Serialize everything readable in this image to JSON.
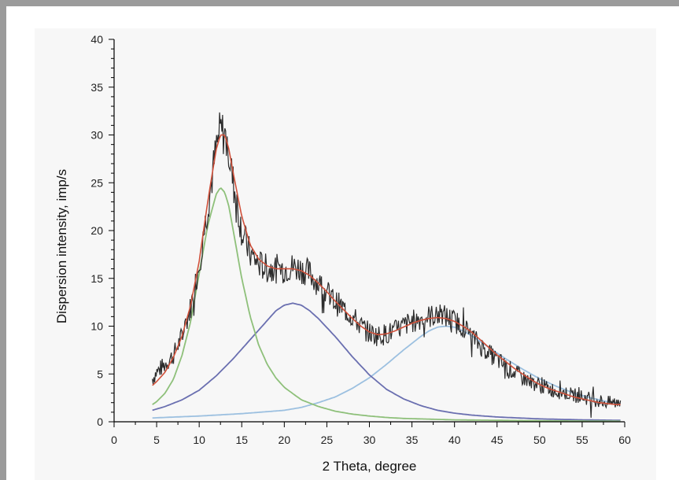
{
  "chart_data": {
    "type": "line",
    "title": "",
    "xlabel": "2 Theta, degree",
    "ylabel": "Dispersion intensity, imp/s",
    "xlim": [
      0,
      60
    ],
    "ylim": [
      0,
      40
    ],
    "x_ticks": [
      0,
      5,
      10,
      15,
      20,
      25,
      30,
      35,
      40,
      45,
      50,
      55,
      60
    ],
    "y_ticks": [
      0,
      5,
      10,
      15,
      20,
      25,
      30,
      35,
      40
    ],
    "x_range_measured": [
      4.5,
      59.5
    ],
    "grid": false,
    "legend": "none",
    "colors": {
      "measured": "#2b2b2b",
      "fit": "#d0503a",
      "peak1": "#8ec07a",
      "peak2": "#6a6fb0",
      "peak3": "#9cc0e0",
      "axis": "#000000"
    },
    "series": [
      {
        "role": "measured",
        "x": [
          4.5,
          5,
          6,
          7,
          8,
          9,
          10,
          11,
          12,
          12.5,
          13,
          13.5,
          14,
          15,
          16,
          17,
          18,
          19,
          20,
          21,
          22,
          23,
          24,
          25,
          26,
          27,
          28,
          29,
          30,
          31,
          32,
          33,
          34,
          35,
          36,
          37,
          38,
          39,
          40,
          41,
          42,
          43,
          44,
          45,
          46,
          47,
          48,
          49,
          50,
          51,
          52,
          53,
          54,
          55,
          56,
          57,
          58,
          59,
          59.5
        ],
        "y": [
          4.5,
          5.2,
          6.0,
          7.0,
          9.0,
          12.0,
          16.5,
          22.5,
          28.5,
          30.5,
          30.0,
          28.0,
          25.0,
          20.0,
          17.5,
          16.5,
          16.0,
          16.0,
          16.0,
          16.2,
          16.0,
          15.5,
          14.5,
          13.5,
          12.5,
          11.8,
          11.0,
          10.0,
          9.3,
          9.0,
          9.2,
          9.5,
          10.0,
          10.5,
          10.8,
          11.0,
          11.2,
          11.0,
          10.5,
          10.0,
          9.0,
          8.0,
          7.2,
          6.5,
          5.8,
          5.2,
          4.6,
          4.2,
          3.8,
          3.5,
          3.2,
          3.0,
          2.8,
          2.6,
          2.4,
          2.2,
          2.0,
          2.0,
          2.2
        ]
      },
      {
        "role": "fit",
        "x": [
          4.5,
          5,
          6,
          7,
          8,
          9,
          10,
          11,
          12,
          12.5,
          13,
          13.5,
          14,
          15,
          16,
          17,
          18,
          19,
          20,
          21,
          22,
          23,
          24,
          25,
          26,
          27,
          28,
          29,
          30,
          31,
          32,
          33,
          34,
          35,
          36,
          37,
          38,
          39,
          40,
          41,
          42,
          43,
          44,
          45,
          46,
          47,
          48,
          49,
          50,
          51,
          52,
          53,
          54,
          55,
          56,
          57,
          58,
          59,
          59.5
        ],
        "y": [
          3.8,
          4.2,
          5.2,
          6.8,
          9.0,
          12.2,
          16.8,
          23.0,
          28.5,
          30.0,
          30.0,
          28.5,
          26.0,
          21.5,
          18.5,
          17.0,
          16.3,
          16.0,
          16.0,
          16.0,
          15.8,
          15.3,
          14.5,
          13.6,
          12.6,
          11.7,
          10.8,
          10.0,
          9.4,
          9.1,
          9.2,
          9.5,
          9.9,
          10.3,
          10.6,
          10.8,
          10.9,
          10.8,
          10.5,
          10.0,
          9.4,
          8.6,
          7.8,
          7.0,
          6.3,
          5.6,
          5.0,
          4.4,
          3.9,
          3.5,
          3.2,
          2.9,
          2.6,
          2.4,
          2.2,
          2.0,
          1.9,
          1.8,
          1.8
        ]
      },
      {
        "role": "peak1",
        "x": [
          4.5,
          5,
          6,
          7,
          8,
          9,
          10,
          11,
          12,
          12.5,
          13,
          13.5,
          14,
          15,
          16,
          17,
          18,
          19,
          20,
          22,
          24,
          26,
          28,
          30,
          32,
          34,
          36,
          38,
          40,
          45,
          50,
          55,
          59.5
        ],
        "y": [
          1.8,
          2.1,
          3.0,
          4.5,
          7.0,
          10.5,
          15.5,
          20.5,
          23.8,
          24.5,
          24.0,
          22.5,
          20.0,
          15.0,
          11.0,
          8.0,
          6.0,
          4.6,
          3.6,
          2.3,
          1.6,
          1.1,
          0.8,
          0.6,
          0.45,
          0.35,
          0.3,
          0.25,
          0.2,
          0.15,
          0.1,
          0.08,
          0.06
        ]
      },
      {
        "role": "peak2",
        "x": [
          4.5,
          6,
          8,
          10,
          12,
          14,
          16,
          18,
          19,
          20,
          21,
          22,
          23,
          24,
          26,
          28,
          30,
          32,
          34,
          36,
          38,
          40,
          42,
          45,
          50,
          55,
          59.5
        ],
        "y": [
          1.2,
          1.6,
          2.3,
          3.3,
          4.8,
          6.6,
          8.6,
          10.6,
          11.6,
          12.2,
          12.4,
          12.2,
          11.6,
          10.8,
          8.9,
          6.8,
          4.9,
          3.4,
          2.4,
          1.7,
          1.2,
          0.9,
          0.7,
          0.5,
          0.3,
          0.2,
          0.15
        ]
      },
      {
        "role": "peak3",
        "x": [
          4.5,
          10,
          15,
          20,
          22,
          24,
          26,
          28,
          30,
          32,
          34,
          36,
          37,
          38,
          39,
          40,
          41,
          42,
          44,
          46,
          48,
          50,
          52,
          54,
          56,
          58,
          59.5
        ],
        "y": [
          0.4,
          0.6,
          0.85,
          1.2,
          1.5,
          2.0,
          2.6,
          3.5,
          4.6,
          6.0,
          7.5,
          8.9,
          9.5,
          9.9,
          10.0,
          9.9,
          9.5,
          9.0,
          7.8,
          6.6,
          5.5,
          4.5,
          3.7,
          3.0,
          2.5,
          2.1,
          1.9
        ]
      }
    ]
  }
}
